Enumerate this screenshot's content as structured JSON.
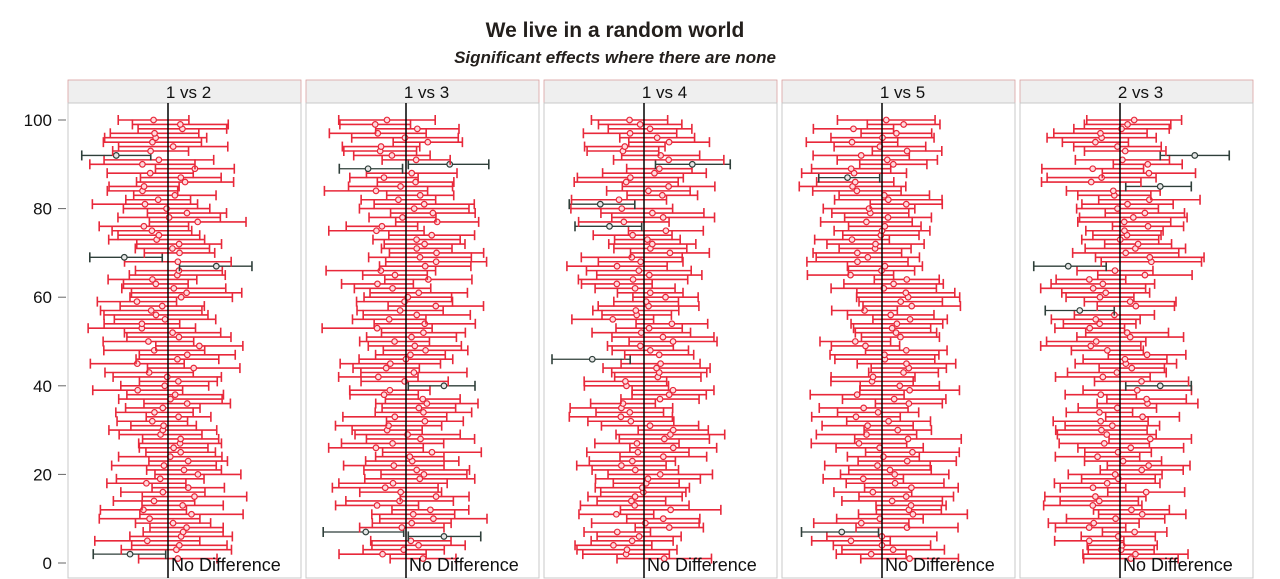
{
  "chart_data": {
    "type": "scatter",
    "title": "We live in a random world",
    "subtitle": "Significant effects where there are none",
    "xlabel": "",
    "ylabel": "",
    "ylim": [
      0,
      100
    ],
    "yticks": [
      0,
      20,
      40,
      60,
      80,
      100
    ],
    "reference_line_label": "No Difference",
    "colors": {
      "nonsignificant": "#e8283a",
      "significant": "#2f3f3a",
      "reference": "#000000",
      "strip_fill": "#efefef",
      "panel_border": "#c8c8c8"
    },
    "panels": [
      {
        "label": "1 vs 2",
        "significant": [
          {
            "y": 92,
            "x": -0.45,
            "lo": -0.75,
            "hi": -0.15
          },
          {
            "y": 69,
            "x": -0.38,
            "lo": -0.68,
            "hi": -0.05
          },
          {
            "y": 67,
            "x": 0.42,
            "lo": 0.1,
            "hi": 0.73
          },
          {
            "y": 2,
            "x": -0.33,
            "lo": -0.65,
            "hi": -0.02
          }
        ]
      },
      {
        "label": "1 vs 3",
        "significant": [
          {
            "y": 90,
            "x": 0.38,
            "lo": 0.02,
            "hi": 0.72
          },
          {
            "y": 89,
            "x": -0.33,
            "lo": -0.58,
            "hi": -0.03
          },
          {
            "y": 40,
            "x": 0.33,
            "lo": 0.02,
            "hi": 0.6
          },
          {
            "y": 7,
            "x": -0.35,
            "lo": -0.72,
            "hi": -0.02
          },
          {
            "y": 6,
            "x": 0.33,
            "lo": 0.02,
            "hi": 0.65
          }
        ]
      },
      {
        "label": "1 vs 4",
        "significant": [
          {
            "y": 90,
            "x": 0.42,
            "lo": 0.1,
            "hi": 0.75
          },
          {
            "y": 81,
            "x": -0.38,
            "lo": -0.65,
            "hi": -0.08
          },
          {
            "y": 76,
            "x": -0.3,
            "lo": -0.6,
            "hi": -0.02
          },
          {
            "y": 46,
            "x": -0.45,
            "lo": -0.8,
            "hi": -0.12
          }
        ]
      },
      {
        "label": "1 vs 5",
        "significant": [
          {
            "y": 87,
            "x": -0.3,
            "lo": -0.55,
            "hi": -0.02
          },
          {
            "y": 7,
            "x": -0.35,
            "lo": -0.7,
            "hi": -0.03
          }
        ]
      },
      {
        "label": "2 vs 3",
        "significant": [
          {
            "y": 92,
            "x": 0.65,
            "lo": 0.35,
            "hi": 0.95
          },
          {
            "y": 85,
            "x": 0.35,
            "lo": 0.05,
            "hi": 0.62
          },
          {
            "y": 67,
            "x": -0.45,
            "lo": -0.75,
            "hi": -0.12
          },
          {
            "y": 57,
            "x": -0.35,
            "lo": -0.65,
            "hi": -0.05
          },
          {
            "y": 40,
            "x": 0.35,
            "lo": 0.05,
            "hi": 0.62
          }
        ]
      }
    ]
  }
}
